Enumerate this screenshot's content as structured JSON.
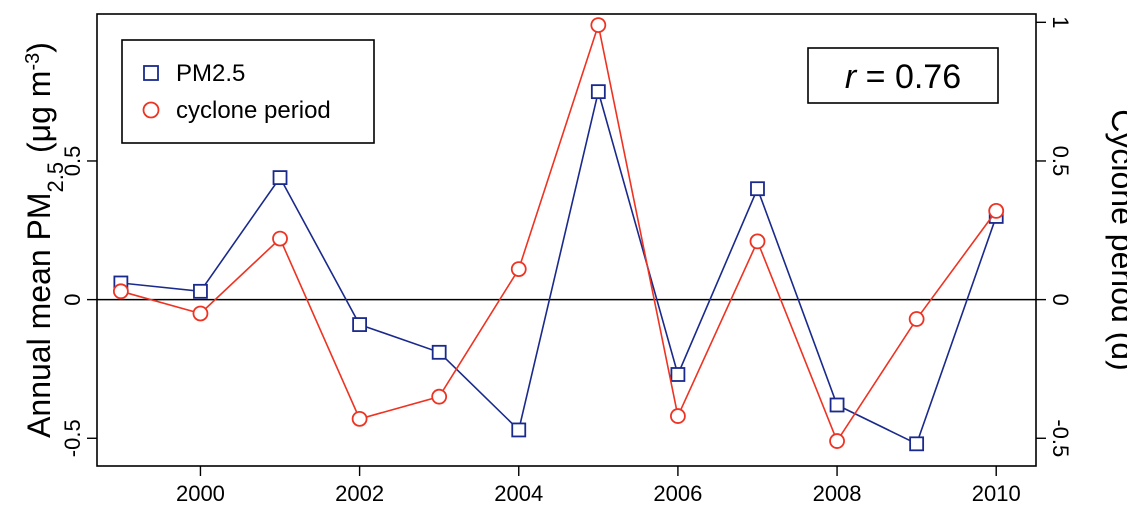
{
  "chart_data": {
    "type": "line",
    "x": [
      1999,
      2000,
      2001,
      2002,
      2003,
      2004,
      2005,
      2006,
      2007,
      2008,
      2009,
      2010
    ],
    "x_ticks": [
      2000,
      2002,
      2004,
      2006,
      2008,
      2010
    ],
    "xlim": [
      1998.7,
      2010.5
    ],
    "y_left": {
      "label_main": "Annual mean PM",
      "label_sub": "2.5",
      "label_unit_open": " (μg m",
      "label_sup": "-3",
      "label_close": ")",
      "ylim": [
        -0.6,
        1.03
      ],
      "ticks": [
        -0.5,
        0,
        0.5
      ],
      "tick_labels": [
        "-0.5",
        "0",
        "0.5"
      ]
    },
    "y_right": {
      "label": "Cyclone period (d)",
      "ylim": [
        -0.6,
        1.03
      ],
      "ticks": [
        -0.5,
        0,
        0.5,
        1
      ],
      "tick_labels": [
        "-0.5",
        "0",
        "0.5",
        "1"
      ]
    },
    "zero_line": true,
    "grid": false,
    "legend_position": "top-left",
    "series": [
      {
        "name": "PM2.5",
        "marker": "square",
        "color": "#1a2a8c",
        "axis": "left",
        "values": [
          0.06,
          0.03,
          0.44,
          -0.09,
          -0.19,
          -0.47,
          0.75,
          -0.27,
          0.4,
          -0.38,
          -0.52,
          0.3
        ]
      },
      {
        "name": "cyclone period",
        "marker": "circle",
        "color": "#ee3322",
        "axis": "right",
        "values": [
          0.03,
          -0.05,
          0.22,
          -0.43,
          -0.35,
          0.11,
          0.99,
          -0.42,
          0.21,
          -0.51,
          -0.07,
          0.32
        ]
      }
    ],
    "annotation": {
      "r_symbol": "r",
      "r_value": " = 0.76",
      "position": "top-right"
    }
  }
}
